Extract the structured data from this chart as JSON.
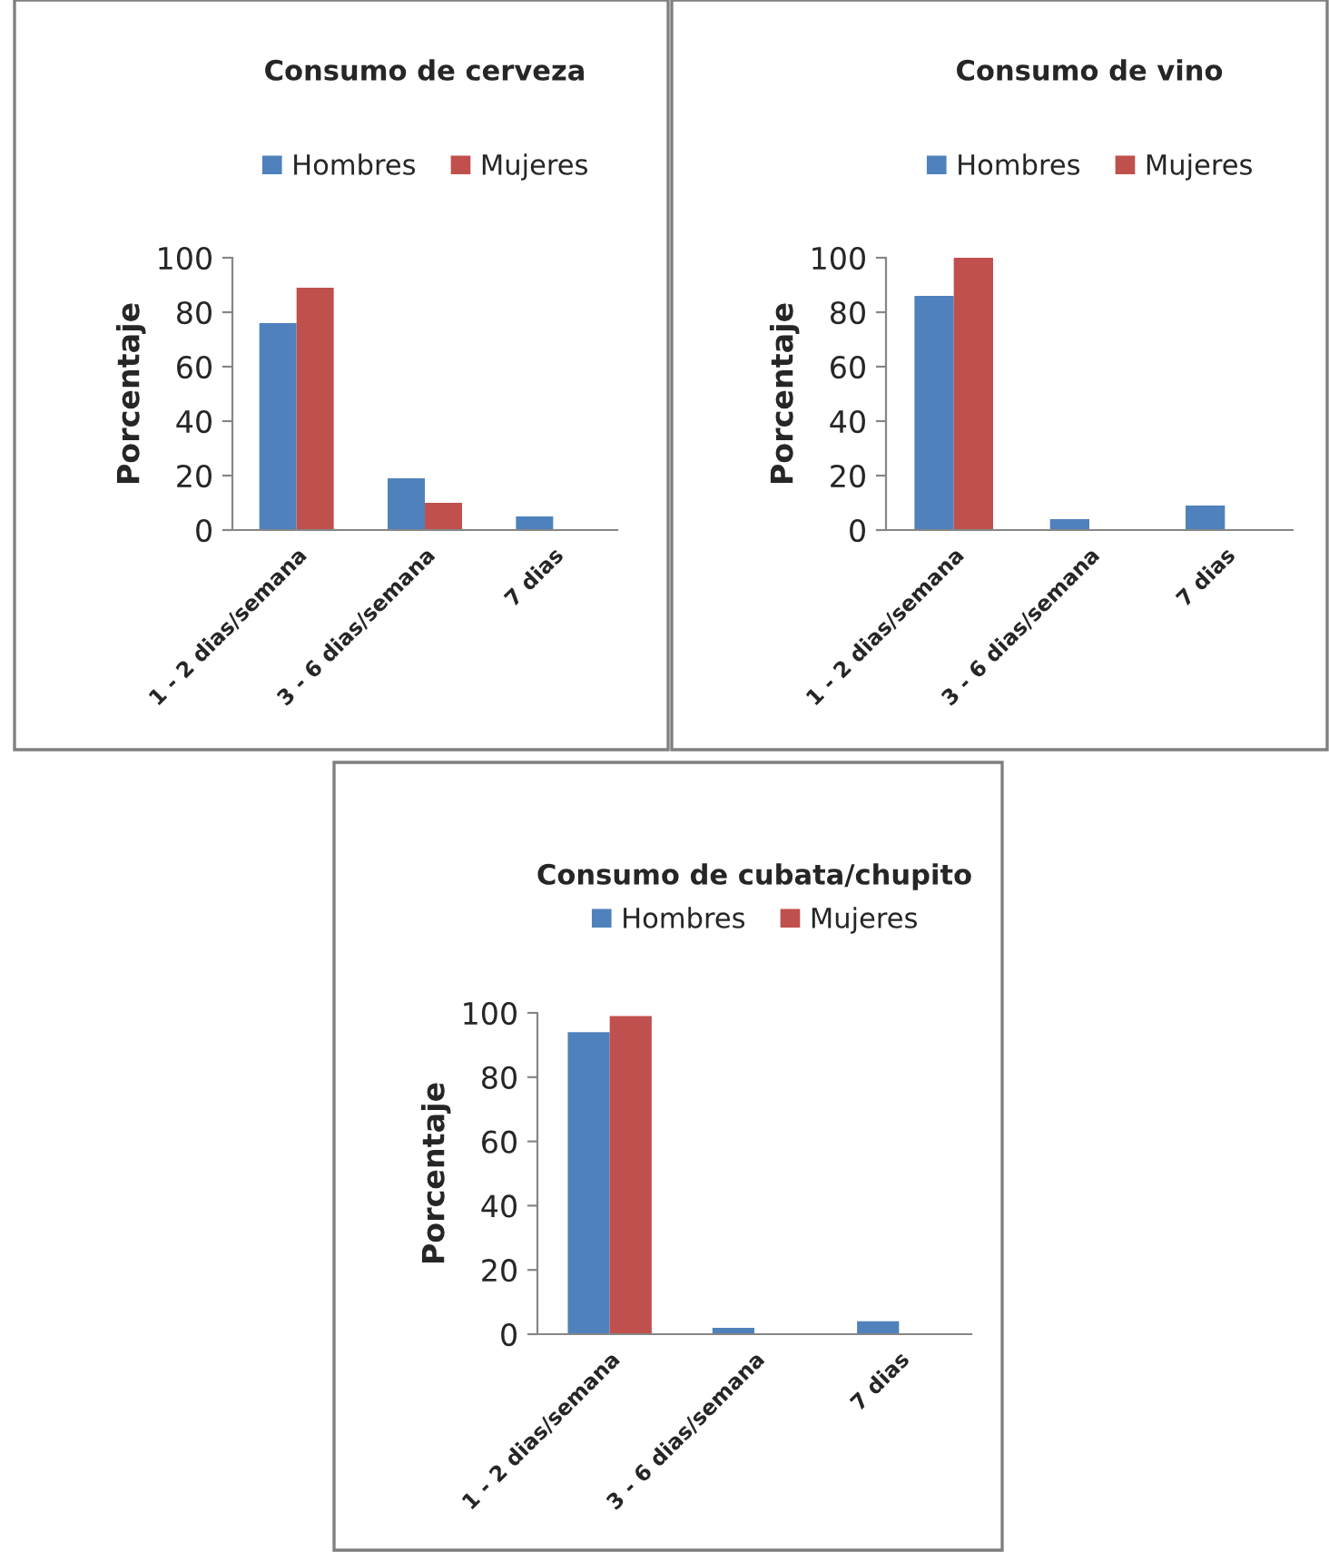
{
  "chart_data": [
    {
      "type": "bar",
      "title": "Consumo de cerveza",
      "ylabel": "Porcentaje",
      "categories": [
        "1 - 2 dias/semana",
        "3 - 6 dias/semana",
        "7 dias"
      ],
      "series": [
        {
          "name": "Hombres",
          "color": "#4f81bd",
          "values": [
            76,
            19,
            5
          ]
        },
        {
          "name": "Mujeres",
          "color": "#c0504d",
          "values": [
            89,
            10,
            0
          ]
        }
      ],
      "ylim": [
        0,
        100
      ],
      "yticks": [
        0,
        20,
        40,
        60,
        80,
        100
      ],
      "legend": "top",
      "grid": false
    },
    {
      "type": "bar",
      "title": "Consumo de vino",
      "ylabel": "Porcentaje",
      "categories": [
        "1 - 2 dias/semana",
        "3 - 6 dias/semana",
        "7 dias"
      ],
      "series": [
        {
          "name": "Hombres",
          "color": "#4f81bd",
          "values": [
            86,
            4,
            9
          ]
        },
        {
          "name": "Mujeres",
          "color": "#c0504d",
          "values": [
            100,
            0,
            0
          ]
        }
      ],
      "ylim": [
        0,
        100
      ],
      "yticks": [
        0,
        20,
        40,
        60,
        80,
        100
      ],
      "legend": "top",
      "grid": false
    },
    {
      "type": "bar",
      "title": "Consumo de cubata/chupito",
      "ylabel": "Porcentaje",
      "categories": [
        "1 - 2 dias/semana",
        "3 - 6 dias/semana",
        "7 dias"
      ],
      "series": [
        {
          "name": "Hombres",
          "color": "#4f81bd",
          "values": [
            94,
            2,
            4
          ]
        },
        {
          "name": "Mujeres",
          "color": "#c0504d",
          "values": [
            99,
            0,
            0
          ]
        }
      ],
      "ylim": [
        0,
        100
      ],
      "yticks": [
        0,
        20,
        40,
        60,
        80,
        100
      ],
      "legend": "top",
      "grid": false
    }
  ]
}
